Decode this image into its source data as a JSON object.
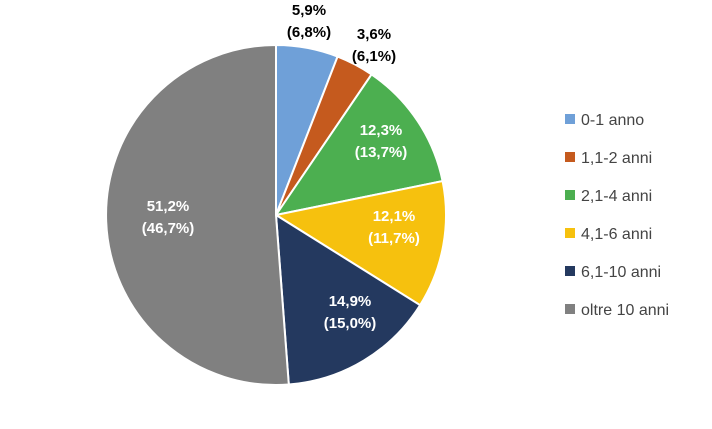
{
  "chart_data": {
    "type": "pie",
    "title": "",
    "legend_position": "right",
    "slices": [
      {
        "name": "0-1 anno",
        "value": 5.9,
        "label": "5,9%",
        "sublabel": "(6,8%)",
        "color": "#6fa0d8",
        "label_color": "#000000"
      },
      {
        "name": "1,1-2 anni",
        "value": 3.6,
        "label": "3,6%",
        "sublabel": "(6,1%)",
        "color": "#c55a1e",
        "label_color": "#000000"
      },
      {
        "name": "2,1-4 anni",
        "value": 12.3,
        "label": "12,3%",
        "sublabel": "(13,7%)",
        "color": "#4caf50",
        "label_color": "#ffffff"
      },
      {
        "name": "4,1-6 anni",
        "value": 12.1,
        "label": "12,1%",
        "sublabel": "(11,7%)",
        "color": "#f6c10e",
        "label_color": "#ffffff"
      },
      {
        "name": "6,1-10 anni",
        "value": 14.9,
        "label": "14,9%",
        "sublabel": "(15,0%)",
        "color": "#24395f",
        "label_color": "#ffffff"
      },
      {
        "name": "oltre 10 anni",
        "value": 51.2,
        "label": "51,2%",
        "sublabel": "(46,7%)",
        "color": "#808080",
        "label_color": "#ffffff"
      }
    ]
  }
}
